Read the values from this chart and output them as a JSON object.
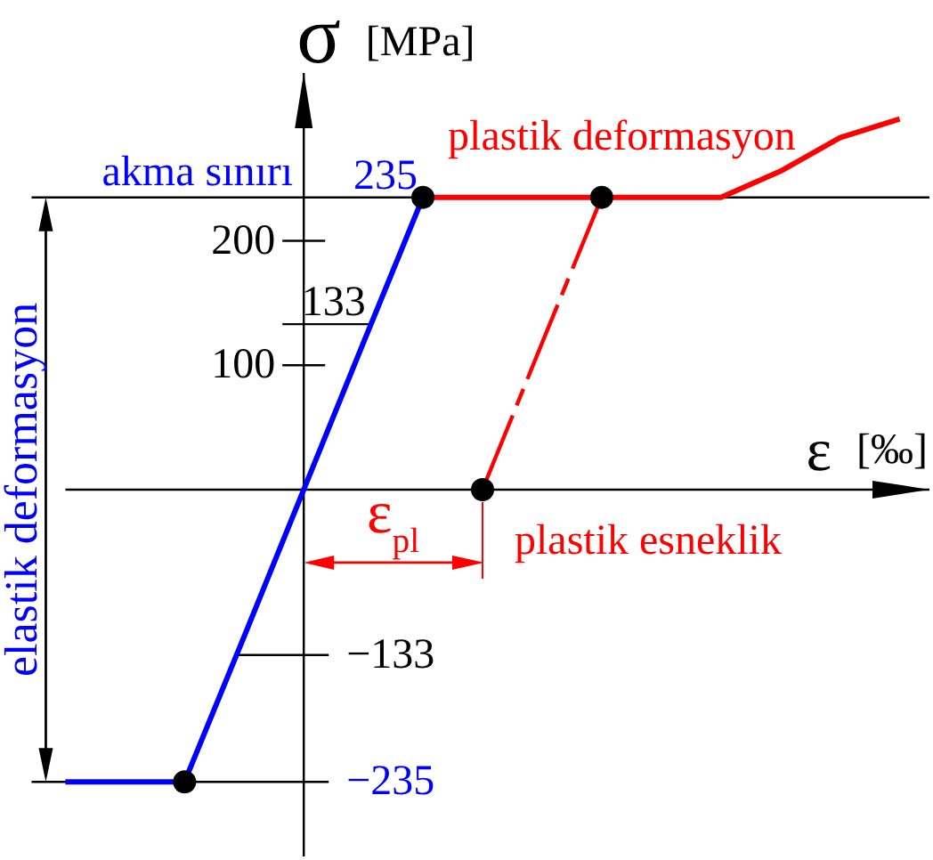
{
  "chart_data": {
    "type": "line",
    "xlabel": "ε [‰]",
    "ylabel": "σ [MPa]",
    "ylim": [
      -295,
      335
    ],
    "categories": [
      null,
      null,
      null,
      null,
      null,
      null,
      null,
      null,
      null,
      null,
      null,
      null,
      null,
      null,
      null
    ],
    "yticks": [
      100,
      200
    ],
    "tick_labels": "y",
    "series": [
      {
        "name": "elastik deformasyon",
        "color": "#0000ff",
        "values": [
          -235,
          -235,
          -235,
          -118,
          0,
          118,
          235,
          null,
          null,
          null,
          null,
          null,
          null,
          null,
          null
        ]
      },
      {
        "name": "plastik deformasyon",
        "color": "#ff0000",
        "values": [
          null,
          null,
          null,
          null,
          null,
          null,
          235,
          235,
          235,
          235,
          235,
          235,
          256,
          283,
          298
        ]
      },
      {
        "name": "plastik esneklik",
        "color": "#ff0000",
        "line_style": "dashed",
        "values": [
          null,
          null,
          null,
          null,
          null,
          null,
          null,
          0,
          118,
          235,
          null,
          null,
          null,
          null,
          null
        ]
      },
      {
        "type": "scatter",
        "color": "#000000",
        "marker": "circle",
        "values": [
          null,
          null,
          -235,
          null,
          null,
          null,
          235,
          0,
          null,
          235,
          null,
          null,
          null,
          null,
          null
        ]
      }
    ],
    "ref_lines": [
      {
        "axis": "y",
        "value": 235,
        "label": "235"
      },
      {
        "axis": "y",
        "value": 133,
        "label": "133"
      },
      {
        "axis": "y",
        "value": -133,
        "label": "−133"
      },
      {
        "axis": "y",
        "value": -235,
        "label": "−235"
      }
    ],
    "annotations": [
      {
        "text": "akma sınırı",
        "y": 235
      },
      "ε$_{pl}$"
    ]
  }
}
